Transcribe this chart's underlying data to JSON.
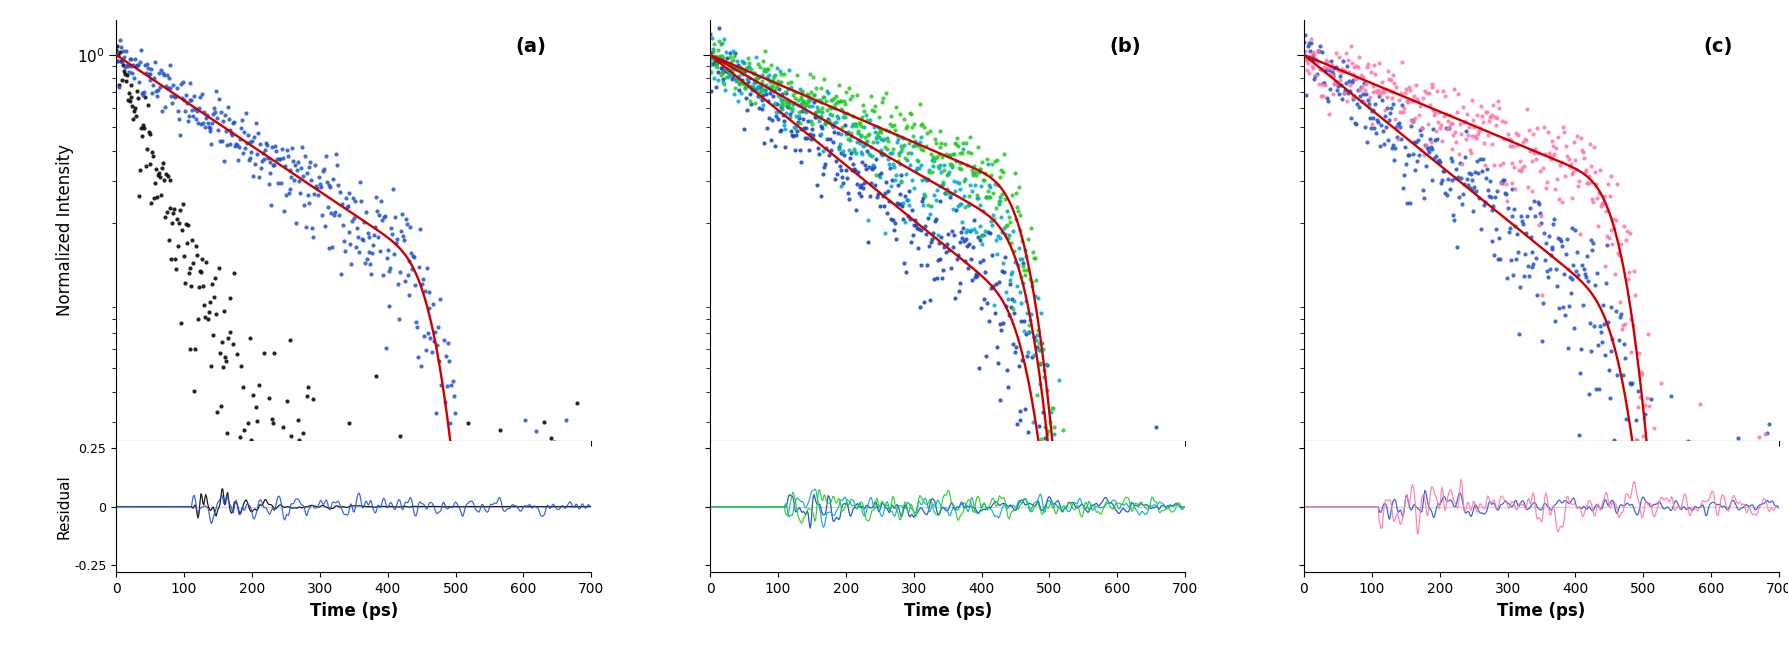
{
  "xlim": [
    0,
    700
  ],
  "ylim_main": [
    0.025,
    1.4
  ],
  "ylim_resid": [
    -0.28,
    0.28
  ],
  "xticks": [
    0,
    100,
    200,
    300,
    400,
    500,
    600,
    700
  ],
  "resid_yticks": [
    -0.25,
    0,
    0.25
  ],
  "xlabel": "Time (ps)",
  "ylabel_main": "Normalized Intensity",
  "ylabel_resid": "Residual",
  "panel_labels": [
    "(a)",
    "(b)",
    "(c)"
  ],
  "fit_color": "#cc0000",
  "background": "#ffffff",
  "panel_a": {
    "scatter1_color": "#000000",
    "scatter2_color": "#2255cc",
    "tau_black": 55,
    "tau_blue": 230,
    "peak_t": 115,
    "rise_tau": 28
  },
  "panel_b": {
    "scatter1_color": "#1144bb",
    "scatter2_color": "#00aacc",
    "scatter3_color": "#22cc22",
    "tau1": 190,
    "tau2": 270,
    "tau3": 360,
    "peak_t": 115,
    "rise_tau": 28
  },
  "panel_c": {
    "scatter1_color": "#2255cc",
    "scatter2_color": "#ff77aa",
    "tau1": 190,
    "tau2": 370,
    "peak_t": 115,
    "rise_tau": 28
  }
}
